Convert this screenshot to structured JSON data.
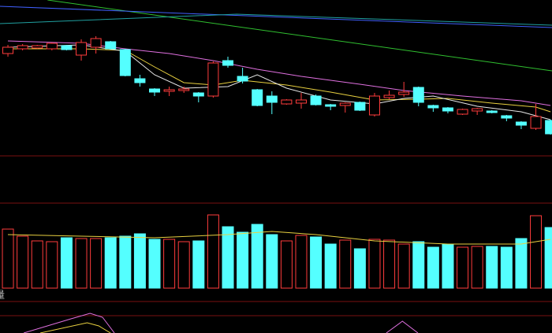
{
  "chart_data": [
    {
      "type": "candlestick",
      "up_color": "#ff3c3c",
      "down_color": "#54ffff",
      "xlim": [
        -0.54,
        37.1
      ],
      "ylim": [
        0,
        260
      ],
      "open": [
        192,
        198,
        199,
        198,
        202,
        190,
        200,
        207,
        197,
        160,
        147,
        144,
        145,
        142,
        138,
        183,
        163,
        146,
        138,
        128,
        129,
        138,
        127,
        126,
        130,
        114,
        136,
        140,
        149,
        126,
        123,
        115,
        119,
        119,
        113,
        105,
        97,
        107
      ],
      "high": [
        203,
        204,
        203,
        206,
        203,
        210,
        214,
        208,
        198,
        165,
        148,
        150,
        150,
        143,
        182,
        188,
        174,
        147,
        144,
        134,
        142,
        140,
        128,
        130,
        131,
        142,
        145,
        156,
        150,
        127,
        124,
        122,
        123,
        120,
        114,
        106,
        128,
        108
      ],
      "low": [
        188,
        196,
        198,
        196,
        196,
        183,
        192,
        197,
        163,
        150,
        138,
        138,
        142,
        130,
        136,
        174,
        154,
        125,
        115,
        127,
        122,
        126,
        120,
        117,
        119,
        112,
        134,
        137,
        125,
        118,
        116,
        114,
        114,
        116,
        106,
        96,
        95,
        89
      ],
      "close": [
        200,
        202,
        202,
        205,
        197,
        206,
        211,
        198,
        164,
        155,
        143,
        146,
        147,
        138,
        180,
        177,
        157,
        126,
        130,
        133,
        133,
        127,
        125,
        129,
        120,
        138,
        139,
        143,
        130,
        123,
        119,
        121,
        122,
        117,
        110,
        101,
        112,
        90
      ],
      "lines": [
        {
          "color": "#e070e0",
          "x": [
            0,
            5,
            8,
            11,
            14,
            17,
            20,
            24,
            27,
            31,
            35,
            37
          ],
          "values": [
            208,
            205,
            198,
            192,
            183,
            172,
            163,
            153,
            145,
            138,
            132,
            126
          ]
        },
        {
          "color": "#e8d040",
          "x": [
            0,
            5,
            8,
            10,
            12,
            14,
            16,
            19,
            22,
            25,
            28,
            30,
            33,
            36,
            37
          ],
          "values": [
            198,
            198,
            196,
            175,
            155,
            152,
            158,
            152,
            143,
            133,
            134,
            135,
            129,
            124,
            118
          ]
        },
        {
          "color": "#e8e8e8",
          "x": [
            0,
            5,
            8,
            10,
            12,
            15,
            17,
            19,
            22,
            25,
            27,
            29,
            32,
            35,
            37
          ],
          "values": [
            200,
            203,
            195,
            165,
            148,
            150,
            165,
            148,
            133,
            128,
            135,
            138,
            125,
            118,
            108
          ]
        },
        {
          "color": "#30c030",
          "x": [
            2.7,
            37.1
          ],
          "values": [
            260,
            170
          ]
        },
        {
          "color": "#4060ff",
          "x": [
            -0.54,
            37.1
          ],
          "values": [
            252,
            225
          ]
        },
        {
          "color": "#20a0a0",
          "x": [
            -0.54,
            15.6,
            37.1
          ],
          "values": [
            230,
            242,
            228
          ]
        }
      ]
    },
    {
      "type": "volume",
      "xlim": [
        -0.54,
        37.1
      ],
      "ylim": [
        0,
        108
      ],
      "volume_label": "量",
      "values": [
        75,
        66,
        60,
        59,
        64,
        63,
        63,
        64,
        66,
        69,
        62,
        62,
        59,
        60,
        93,
        78,
        71,
        81,
        68,
        60,
        67,
        65,
        56,
        61,
        50,
        62,
        61,
        56,
        59,
        52,
        56,
        52,
        53,
        53,
        52,
        63,
        92,
        77
      ],
      "ma": {
        "color": "#e8d040",
        "x": [
          0,
          5,
          10,
          15,
          18,
          21,
          25,
          30,
          35,
          37
        ],
        "values": [
          68,
          66,
          64,
          68,
          72,
          68,
          60,
          56,
          56,
          62
        ]
      }
    },
    {
      "type": "line",
      "xlim": [
        -0.54,
        37.1
      ],
      "ylim": [
        0,
        40
      ],
      "series": [
        {
          "color": "#e070e0",
          "x": [
            1.08,
            4.3,
            5.6,
            6.45,
            7.26,
            null,
            25.8,
            26.9,
            27.96
          ],
          "values": [
            0,
            18,
            25,
            20,
            0,
            null,
            0,
            15,
            0
          ]
        },
        {
          "color": "#e8d040",
          "x": [
            2.2,
            5.4,
            6.2,
            7.0
          ],
          "values": [
            0,
            13,
            9,
            0
          ]
        }
      ]
    }
  ]
}
